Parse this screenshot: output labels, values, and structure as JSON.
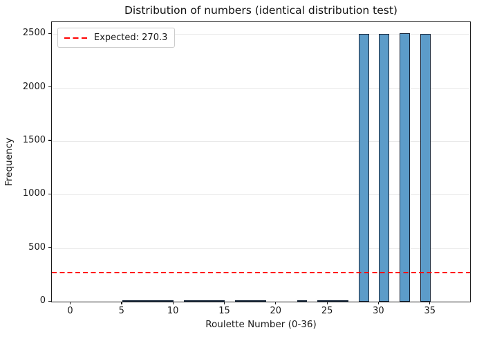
{
  "title": "Distribution of numbers (identical distribution test)",
  "colors": {
    "bar_fill": "#5C9CC9",
    "bar_edge": "#18273A",
    "expected_line": "#FF0000",
    "grid": "#E9E9E9",
    "axis": "#1A1A1A",
    "legend_border": "#CCCCCC",
    "background": "#FFFFFF"
  },
  "legend": {
    "label": "Expected: 270.3",
    "position": "upper left",
    "line_style": "dashed"
  },
  "chart_data": {
    "type": "bar",
    "title": "Distribution of numbers (identical distribution test)",
    "xlabel": "Roulette Number (0-36)",
    "ylabel": "Frequency",
    "x": [
      0,
      1,
      2,
      3,
      4,
      5,
      6,
      7,
      8,
      9,
      10,
      11,
      12,
      13,
      14,
      15,
      16,
      17,
      18,
      19,
      20,
      21,
      22,
      23,
      24,
      25,
      26,
      27,
      28,
      29,
      30,
      31,
      32,
      33,
      34,
      35,
      36
    ],
    "values": [
      0,
      0,
      0,
      0,
      0,
      3,
      2,
      3,
      2,
      3,
      0,
      2,
      2,
      2,
      3,
      0,
      2,
      3,
      2,
      0,
      0,
      0,
      2,
      0,
      2,
      2,
      2,
      0,
      2490,
      0,
      2491,
      0,
      2492,
      0,
      2490,
      0,
      0
    ],
    "bin_width": 1,
    "xticks": [
      0,
      5,
      10,
      15,
      20,
      25,
      30,
      35
    ],
    "yticks": [
      0,
      500,
      1000,
      1500,
      2000,
      2500
    ],
    "xlim": [
      -1.85,
      38.85
    ],
    "ylim": [
      0,
      2611
    ],
    "grid": "horizontal",
    "legend_position": "upper left",
    "expected_line": {
      "value": 270.3,
      "label": "Expected: 270.3",
      "color": "#FF0000",
      "style": "dashed"
    }
  }
}
